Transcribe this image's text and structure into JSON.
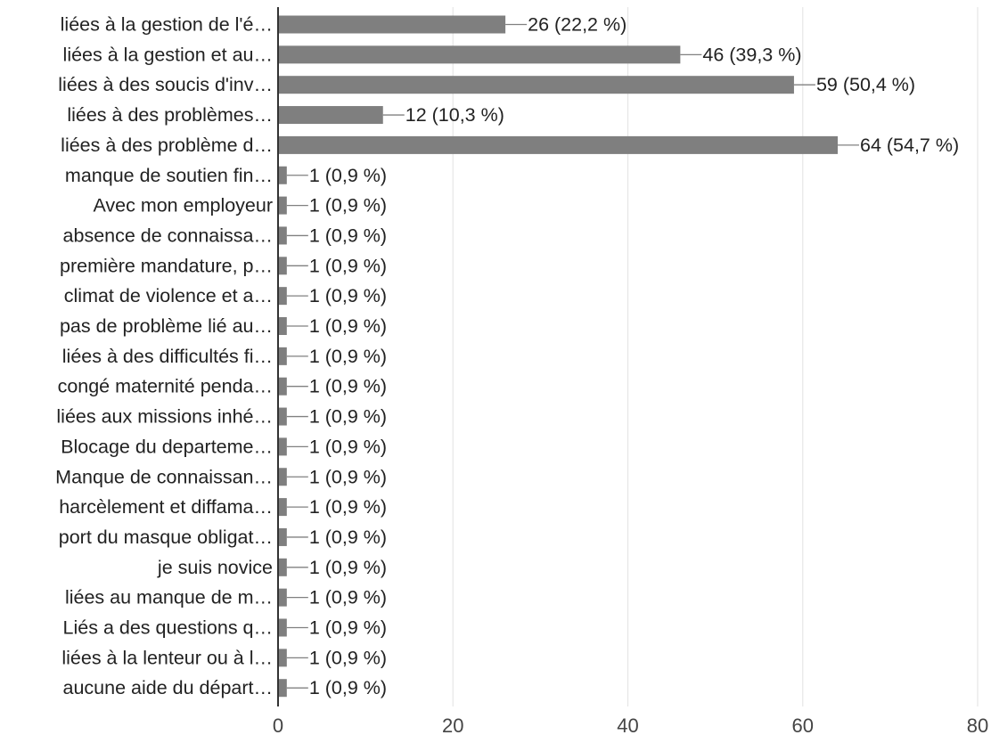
{
  "chart_data": {
    "type": "bar",
    "orientation": "horizontal",
    "categories": [
      "liées à la gestion de l'é…",
      "liées à la gestion et au…",
      "liées à des soucis d'inv…",
      "liées à des problèmes…",
      "liées à des problème d…",
      "manque de soutien fin…",
      "Avec mon employeur",
      "absence de connaissa…",
      "première mandature, p…",
      "climat de violence et a…",
      "pas de problème lié au…",
      "liées à des difficultés fi…",
      "congé maternité penda…",
      "liées aux missions inhé…",
      "Blocage du departeme…",
      "Manque de connaissan…",
      "harcèlement et diffama…",
      "port du masque obligat…",
      "je suis novice",
      "liées au manque de m…",
      "Liés a des questions q…",
      "liées à la lenteur ou à l…",
      "aucune aide du départ…"
    ],
    "values": [
      26,
      46,
      59,
      12,
      64,
      1,
      1,
      1,
      1,
      1,
      1,
      1,
      1,
      1,
      1,
      1,
      1,
      1,
      1,
      1,
      1,
      1,
      1
    ],
    "value_labels": [
      "26 (22,2 %)",
      "46 (39,3 %)",
      "59 (50,4 %)",
      "12 (10,3 %)",
      "64 (54,7 %)",
      "1 (0,9 %)",
      "1 (0,9 %)",
      "1 (0,9 %)",
      "1 (0,9 %)",
      "1 (0,9 %)",
      "1 (0,9 %)",
      "1 (0,9 %)",
      "1 (0,9 %)",
      "1 (0,9 %)",
      "1 (0,9 %)",
      "1 (0,9 %)",
      "1 (0,9 %)",
      "1 (0,9 %)",
      "1 (0,9 %)",
      "1 (0,9 %)",
      "1 (0,9 %)",
      "1 (0,9 %)",
      "1 (0,9 %)"
    ],
    "xticks": [
      0,
      20,
      40,
      60,
      80
    ],
    "xlim": [
      0,
      80
    ],
    "grid": true,
    "colors": {
      "bar": "#7f7f7f",
      "text": "#222222",
      "grid": "#e6e6e6",
      "axis": "#333333",
      "leader": "#808080"
    }
  }
}
